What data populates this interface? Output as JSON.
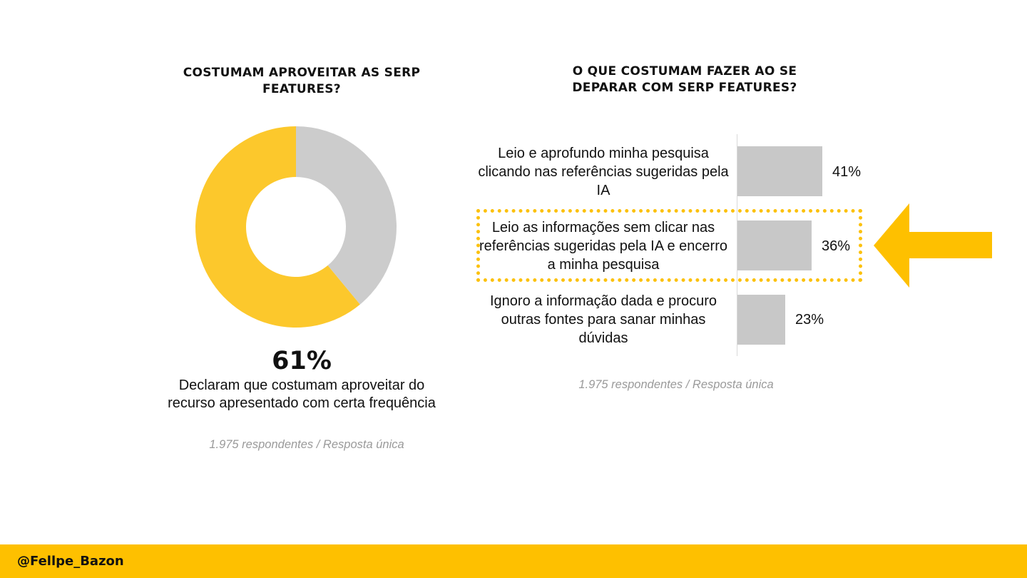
{
  "colors": {
    "accent": "#fec000",
    "donut_yes": "#fcc82c",
    "donut_no": "#cccccc",
    "bar": "#c8c8c8",
    "note": "#9a9a9a"
  },
  "left_panel": {
    "title": "COSTUMAM APROVEITAR AS SERP FEATURES?",
    "big_percent": "61%",
    "caption": "Declaram que costumam aproveitar do recurso apresentado com certa frequência",
    "note": "1.975 respondentes / Resposta única"
  },
  "right_panel": {
    "title": "O QUE COSTUMAM FAZER AO SE DEPARAR COM SERP FEATURES?",
    "note": "1.975 respondentes / Resposta única"
  },
  "chart_data": [
    {
      "type": "pie",
      "title": "COSTUMAM APROVEITAR AS SERP FEATURES?",
      "donut": true,
      "slices": [
        {
          "value": 61,
          "color": "#fcc82c"
        },
        {
          "value": 39,
          "color": "#cccccc"
        }
      ],
      "center_label": "61%"
    },
    {
      "type": "bar",
      "orientation": "horizontal",
      "title": "O QUE COSTUMAM FAZER AO SE DEPARAR COM SERP FEATURES?",
      "categories": [
        "Leio e aprofundo minha pesquisa clicando nas referências sugeridas pela IA",
        "Leio as informações sem clicar nas referências sugeridas pela IA e encerro a minha pesquisa",
        "Ignoro a informação dada e procuro outras fontes para sanar minhas dúvidas"
      ],
      "values": [
        41,
        36,
        23
      ],
      "value_labels": [
        "41%",
        "36%",
        "23%"
      ],
      "highlighted_index": 1,
      "xlim": [
        0,
        100
      ],
      "grid": false
    }
  ],
  "footer": {
    "handle": "@Fellpe_Bazon"
  }
}
